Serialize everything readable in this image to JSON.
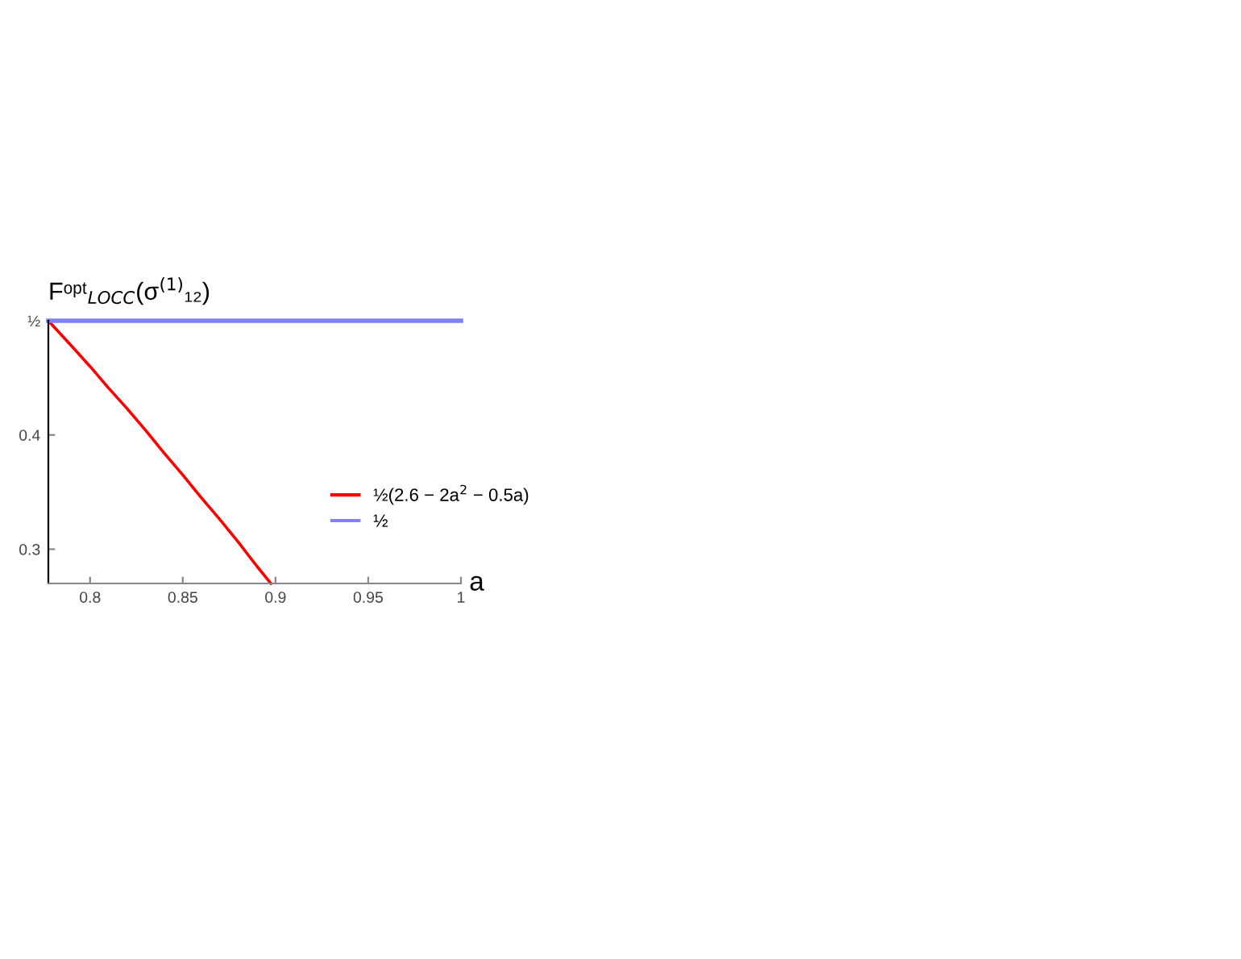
{
  "chart_data": {
    "type": "line",
    "ylabel": "Fᵒᵖᵗ$_{LOCC}$(σ$^{(1)}$₁₂)",
    "xlabel": "a",
    "series": [
      {
        "name": "½(2.6 − 2a$^{2}$ − 0.5a)",
        "color": "#ff0000",
        "x": [
          0.7775,
          0.79,
          0.8,
          0.81,
          0.82,
          0.83,
          0.84,
          0.85,
          0.86,
          0.87,
          0.88,
          0.89,
          0.8975
        ],
        "values": [
          0.5,
          0.478,
          0.46,
          0.441,
          0.423,
          0.404,
          0.384,
          0.365,
          0.345,
          0.326,
          0.306,
          0.285,
          0.27
        ]
      },
      {
        "name": "½",
        "color": "#8080ff",
        "x": [
          0.7775,
          1.0
        ],
        "values": [
          0.5,
          0.5
        ]
      }
    ],
    "xlim": [
      0.7775,
      1.0
    ],
    "ylim": [
      0.27,
      0.5
    ],
    "xticks": [
      0.8,
      0.85,
      0.9,
      0.95,
      1
    ],
    "yticks": [
      0.3,
      0.4,
      {
        "value": 0.5,
        "label": "½"
      }
    ],
    "grid": false,
    "legend": "right",
    "marker": "none",
    "line_style": "solid"
  }
}
